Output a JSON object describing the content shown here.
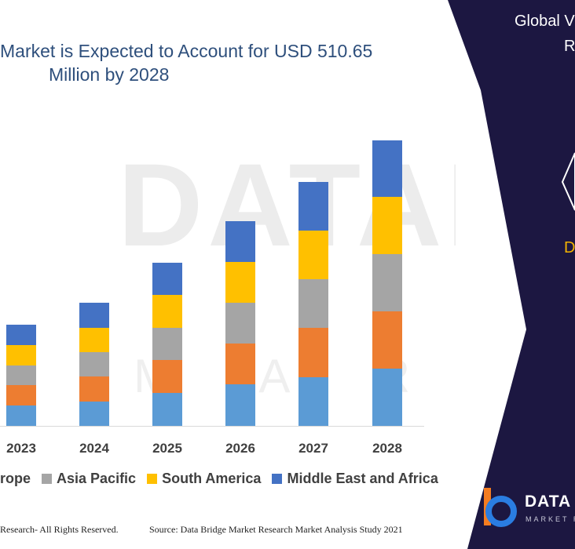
{
  "watermark": {
    "main": "DATABRI",
    "sub": "M A R K E T   R E S"
  },
  "chart_data": {
    "type": "bar",
    "stacked": true,
    "title_lines": [
      "Market is Expected to Account for USD 510.65",
      "Million by 2028"
    ],
    "categories": [
      "2023",
      "2024",
      "2025",
      "2026",
      "2027",
      "2028"
    ],
    "series": [
      {
        "name": "",
        "color": "#5b9bd5",
        "values": [
          26,
          31,
          42,
          53,
          62,
          73
        ]
      },
      {
        "name": "",
        "color": "#ed7d31",
        "values": [
          26,
          32,
          42,
          52,
          63,
          73
        ]
      },
      {
        "name": "Asia Pacific",
        "color": "#a5a5a5",
        "values": [
          25,
          31,
          41,
          52,
          62,
          73
        ]
      },
      {
        "name": "South America",
        "color": "#ffc000",
        "values": [
          26,
          31,
          42,
          52,
          62,
          73
        ]
      },
      {
        "name": "Middle East and Africa",
        "color": "#4472c4",
        "values": [
          26,
          32,
          41,
          52,
          62,
          72
        ]
      }
    ],
    "xlabel": "",
    "ylabel": "",
    "grid": false,
    "legend": "bottom"
  },
  "legend_entries": [
    {
      "label": "rope",
      "color": "#ed7d31",
      "show_swatch": false
    },
    {
      "label": "Asia Pacific",
      "color": "#a5a5a5",
      "show_swatch": true
    },
    {
      "label": "South America",
      "color": "#ffc000",
      "show_swatch": true
    },
    {
      "label": "Middle East and Africa",
      "color": "#4472c4",
      "show_swatch": true
    }
  ],
  "footer": {
    "left": "Research- All Rights Reserved.",
    "right": "Source: Data Bridge Market Research Market Analysis Study 2021"
  },
  "side_panel": {
    "color": "#1c1741",
    "line_1": "Global V",
    "line_2": "R",
    "accent_text": "D",
    "accent_color": "#f4b400",
    "logo_text": "DATA B",
    "logo_sub": "MARKET R",
    "logo_colors": {
      "orange": "#f47c20",
      "blue": "#2a7de1"
    }
  }
}
